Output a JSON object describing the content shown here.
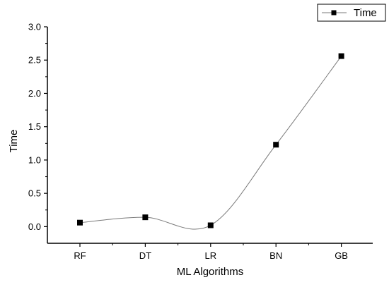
{
  "chart_data": {
    "type": "line",
    "categories": [
      "RF",
      "DT",
      "LR",
      "BN",
      "GB"
    ],
    "series": [
      {
        "name": "Time",
        "values": [
          0.06,
          0.14,
          0.02,
          1.23,
          2.56
        ]
      }
    ],
    "xlabel": "ML Algorithms",
    "ylabel": "Time",
    "ylim": [
      -0.25,
      3.0
    ],
    "yticks": [
      "0.0",
      "0.5",
      "1.0",
      "1.5",
      "2.0",
      "2.5",
      "3.0"
    ],
    "ytick_values": [
      0.0,
      0.5,
      1.0,
      1.5,
      2.0,
      2.5,
      3.0
    ],
    "grid": false,
    "legend_position": "top-right",
    "line_style": "smooth spline",
    "marker": "filled square",
    "colors": {
      "line": "#7a7a7a",
      "marker": "#000000",
      "axis": "#000000"
    }
  }
}
